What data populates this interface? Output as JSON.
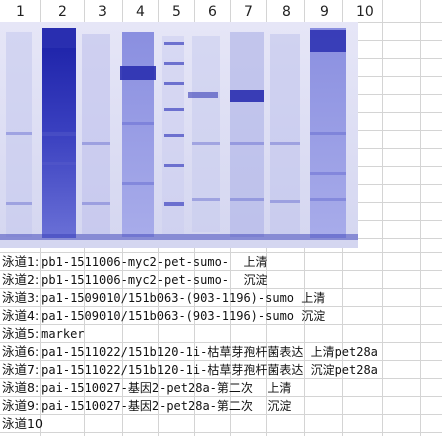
{
  "lane_numbers": [
    "1",
    "2",
    "3",
    "4",
    "5",
    "6",
    "7",
    "8",
    "9",
    "10"
  ],
  "legend": [
    {
      "label": "泳道1:",
      "text": "pb1-1511006-myc2-pet-sumo-  上清"
    },
    {
      "label": "泳道2:",
      "text": "pb1-1511006-myc2-pet-sumo-  沉淀"
    },
    {
      "label": "泳道3:",
      "text": "pa1-1509010/151b063-(903-1196)-sumo 上清"
    },
    {
      "label": "泳道4:",
      "text": "pa1-1509010/151b063-(903-1196)-sumo 沉淀"
    },
    {
      "label": "泳道5:",
      "text": "marker"
    },
    {
      "label": "泳道6:",
      "text": "pa1-1511022/151b120-1i-枯草芽孢杆菌表达 上清pet28a"
    },
    {
      "label": "泳道7:",
      "text": "pa1-1511022/151b120-1i-枯草芽孢杆菌表达 沉淀pet28a"
    },
    {
      "label": "泳道8:",
      "text": "pai-1510027-基因2-pet28a-第二次  上清"
    },
    {
      "label": "泳道9:",
      "text": "pai-1510027-基因2-pet28a-第二次  沉淀"
    },
    {
      "label": "泳道10",
      "text": ""
    }
  ],
  "colors": {
    "gel_bg": "#dcdcf3",
    "band": "#2a2fb0",
    "grid": "#d4d4d4"
  }
}
